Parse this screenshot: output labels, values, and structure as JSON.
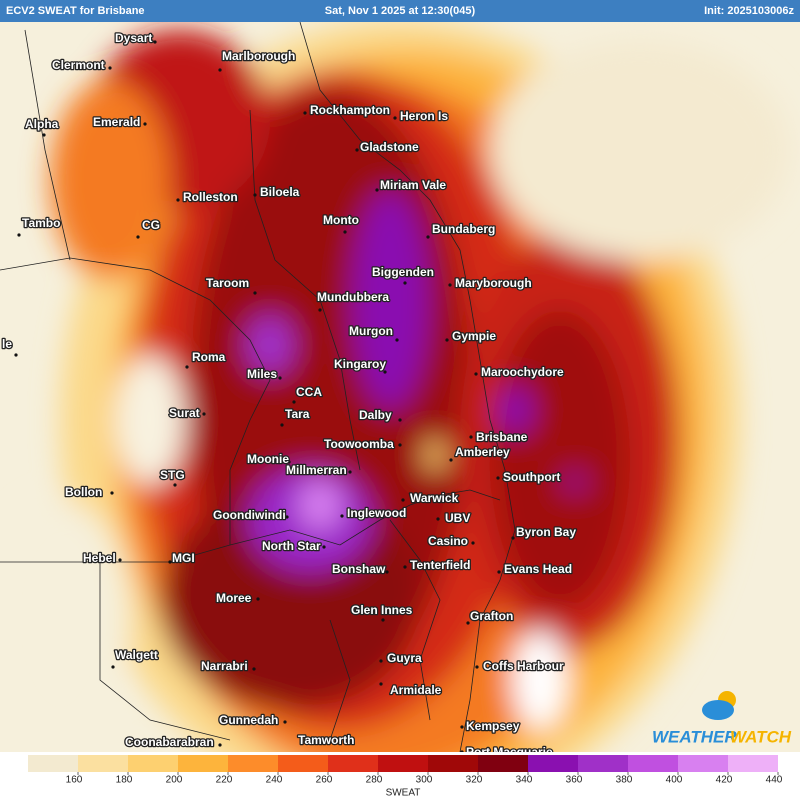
{
  "header": {
    "left": "ECV2 SWEAT for Brisbane",
    "center": "Sat, Nov 1 2025 at 12:30(045)",
    "right": "Init: 2025103006z"
  },
  "places": [
    "Dysart",
    "Clermont",
    "Marlborough",
    "Rockhampton",
    "Heron Is",
    "Alpha",
    "Emerald",
    "Gladstone",
    "Miriam Vale",
    "Rolleston",
    "Biloela",
    "Monto",
    "Bundaberg",
    "Tambo",
    "CG",
    "Biggenden",
    "Maryborough",
    "Taroom",
    "Mundubbera",
    "Murgon",
    "Gympie",
    "le",
    "Roma",
    "Kingaroy",
    "Miles",
    "Maroochydore",
    "CCA",
    "Surat",
    "Tara",
    "Dalby",
    "Brisbane",
    "Toowoomba",
    "Amberley",
    "Moonie",
    "Millmerran",
    "Southport",
    "STG",
    "Bollon",
    "Warwick",
    "Goondiwindi",
    "Inglewood",
    "UBV",
    "Byron Bay",
    "Casino",
    "North Star",
    "Hebel",
    "MGI",
    "Bonshaw",
    "Tenterfield",
    "Evans Head",
    "Moree",
    "Glen Innes",
    "Grafton",
    "Walgett",
    "Guyra",
    "Narrabri",
    "Coffs Harbour",
    "Armidale",
    "Gunnedah",
    "Kempsey",
    "Coonabarabran",
    "Tamworth",
    "Port Macquarie"
  ],
  "colorbar": {
    "label": "SWEAT",
    "ticks": [
      160,
      180,
      200,
      220,
      240,
      260,
      280,
      300,
      320,
      340,
      360,
      380,
      400,
      420,
      440
    ],
    "colors": [
      "#f3ead0",
      "#fbe0a0",
      "#fdd070",
      "#fdb43c",
      "#fd8c2a",
      "#f45c1a",
      "#e0301a",
      "#c01010",
      "#a00808",
      "#800010",
      "#8a10b0",
      "#a030c8",
      "#c050e0",
      "#d880f0",
      "#eeb0f8"
    ]
  },
  "logo": {
    "parts": [
      "WEATHER",
      "WATCH"
    ]
  }
}
